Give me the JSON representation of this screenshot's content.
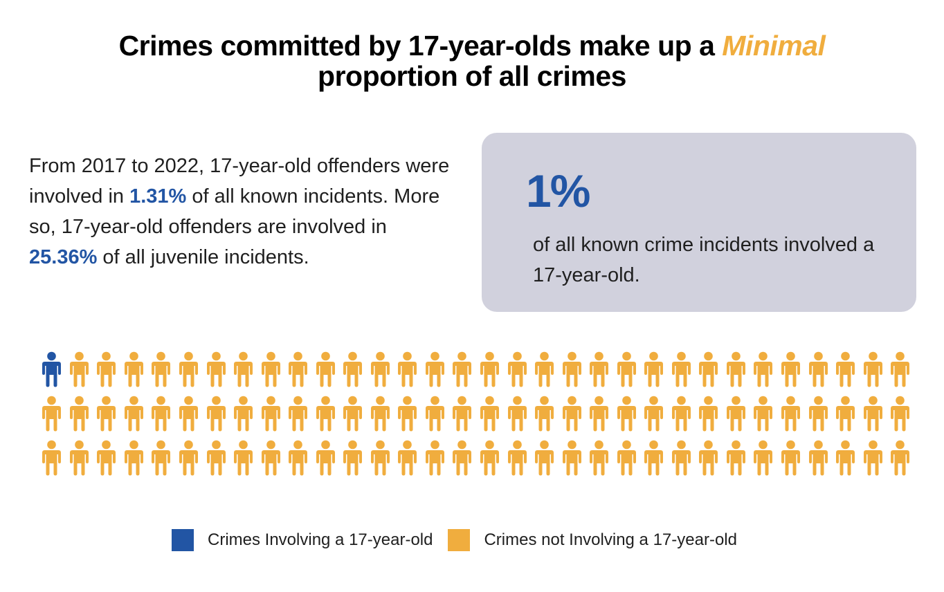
{
  "title": {
    "line1_prefix": "Crimes committed by 17-year-olds make up a ",
    "highlight": "Minimal",
    "line2": "proportion of all crimes",
    "highlight_color": "#F0AD3E"
  },
  "body": {
    "part1": "From 2017 to 2022, 17-year-old offenders were involved in ",
    "stat1": "1.31%",
    "part2": " of all known incidents. More so, 17-year-old offenders are involved in ",
    "stat2": "25.36%",
    "part3": " of all juvenile incidents."
  },
  "stat_box": {
    "value": "1%",
    "description": "of all known crime incidents involved a 17-year-old.",
    "background": "#D1D1DD"
  },
  "colors": {
    "involving": "#2255A4",
    "not_involving": "#F0AD3E"
  },
  "legend": {
    "items": [
      {
        "label": "Crimes Involving a 17-year-old",
        "color": "#2255A4"
      },
      {
        "label": "Crimes not Involving a 17-year-old",
        "color": "#F0AD3E"
      }
    ]
  },
  "chart_data": {
    "type": "pictogram",
    "title": "Crimes committed by 17-year-olds make up a Minimal proportion of all crimes",
    "rows": 3,
    "columns": 32,
    "total_icons": 96,
    "series": [
      {
        "name": "Crimes Involving a 17-year-old",
        "count": 1,
        "color": "#2255A4"
      },
      {
        "name": "Crimes not Involving a 17-year-old",
        "count": 95,
        "color": "#F0AD3E"
      }
    ],
    "highlight_value": "1%",
    "annotations": [
      "1.31% of all known incidents (2017–2022)",
      "25.36% of all juvenile incidents"
    ],
    "legend_position": "bottom"
  }
}
